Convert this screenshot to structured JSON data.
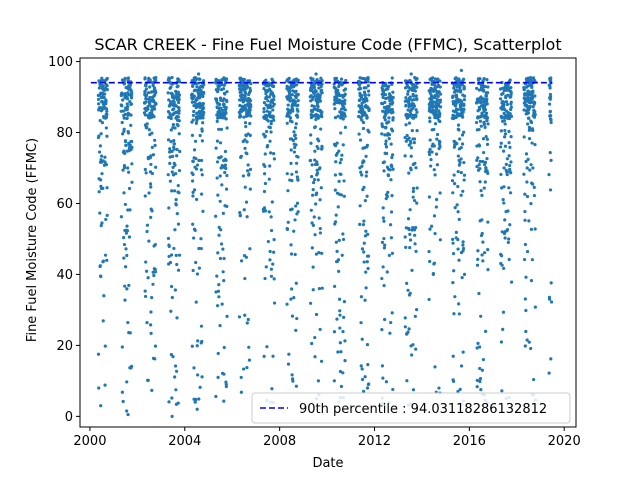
{
  "chart_data": {
    "type": "scatter",
    "title": "SCAR CREEK - Fine Fuel Moisture Code (FFMC), Scatterplot",
    "xlabel": "Date",
    "ylabel": "Fine Fuel Moisture Code (FFMC)",
    "xlim": [
      "1999-08-01",
      "2020-07-01"
    ],
    "ylim": [
      -3,
      101
    ],
    "xticks": [
      "2000",
      "2004",
      "2008",
      "2012",
      "2016",
      "2020"
    ],
    "yticks": [
      "0",
      "20",
      "40",
      "60",
      "80",
      "100"
    ],
    "grid": false,
    "legend": {
      "placement": "bottom-right",
      "entries": [
        "90th percentile : 94.03118286132812"
      ]
    },
    "reference_line": {
      "y": 94.03118286132812,
      "x_start": "2000-01-15",
      "x_end": "2019-07-01",
      "style": "dashed",
      "color": "#0000ff"
    },
    "point_color": "#1f77b4",
    "seasons": [
      {
        "year": 2000,
        "start": "2000-05-10",
        "end": "2000-09-25"
      },
      {
        "year": 2001,
        "start": "2001-04-25",
        "end": "2001-10-10"
      },
      {
        "year": 2002,
        "start": "2002-04-20",
        "end": "2002-10-15"
      },
      {
        "year": 2003,
        "start": "2003-04-20",
        "end": "2003-10-15"
      },
      {
        "year": 2004,
        "start": "2004-04-15",
        "end": "2004-10-20"
      },
      {
        "year": 2005,
        "start": "2005-04-20",
        "end": "2005-10-15"
      },
      {
        "year": 2006,
        "start": "2006-04-20",
        "end": "2006-10-15"
      },
      {
        "year": 2007,
        "start": "2007-04-25",
        "end": "2007-10-15"
      },
      {
        "year": 2008,
        "start": "2008-04-20",
        "end": "2008-10-15"
      },
      {
        "year": 2009,
        "start": "2009-04-15",
        "end": "2009-10-20"
      },
      {
        "year": 2010,
        "start": "2010-04-20",
        "end": "2010-10-15"
      },
      {
        "year": 2011,
        "start": "2011-05-01",
        "end": "2011-10-10"
      },
      {
        "year": 2012,
        "start": "2012-04-20",
        "end": "2012-10-15"
      },
      {
        "year": 2013,
        "start": "2013-04-15",
        "end": "2013-10-20"
      },
      {
        "year": 2014,
        "start": "2014-04-20",
        "end": "2014-10-15"
      },
      {
        "year": 2015,
        "start": "2015-04-15",
        "end": "2015-10-20"
      },
      {
        "year": 2016,
        "start": "2016-04-20",
        "end": "2016-10-15"
      },
      {
        "year": 2017,
        "start": "2017-04-25",
        "end": "2017-10-15"
      },
      {
        "year": 2018,
        "start": "2018-04-20",
        "end": "2018-10-15"
      },
      {
        "year": 2019,
        "start": "2019-05-10",
        "end": "2019-06-20"
      }
    ],
    "annotated_points": [
      {
        "x": "2000-05-15",
        "y": 8
      },
      {
        "x": "2000-06-15",
        "y": 3
      },
      {
        "x": "2001-08-10",
        "y": 0.5
      },
      {
        "x": "2001-07-20",
        "y": 1.5
      },
      {
        "x": "2003-06-20",
        "y": 0
      },
      {
        "x": "2004-06-10",
        "y": 4
      },
      {
        "x": "2004-07-10",
        "y": 2
      },
      {
        "x": "2005-10-01",
        "y": 9
      },
      {
        "x": "2007-08-20",
        "y": 4
      },
      {
        "x": "2008-09-15",
        "y": 8.5
      },
      {
        "x": "2009-08-20",
        "y": 10
      },
      {
        "x": "2011-09-15",
        "y": 8
      },
      {
        "x": "2015-07-10",
        "y": 7
      },
      {
        "x": "2016-08-20",
        "y": 6
      },
      {
        "x": "2016-09-01",
        "y": 4.5
      },
      {
        "x": "2015-09-01",
        "y": 97.5
      },
      {
        "x": "2009-07-15",
        "y": 96.5
      },
      {
        "x": "2004-08-01",
        "y": 96.5
      },
      {
        "x": "2013-07-20",
        "y": 96.5
      },
      {
        "x": "2019-06-05",
        "y": 90
      },
      {
        "x": "2019-06-10",
        "y": 94
      }
    ]
  }
}
